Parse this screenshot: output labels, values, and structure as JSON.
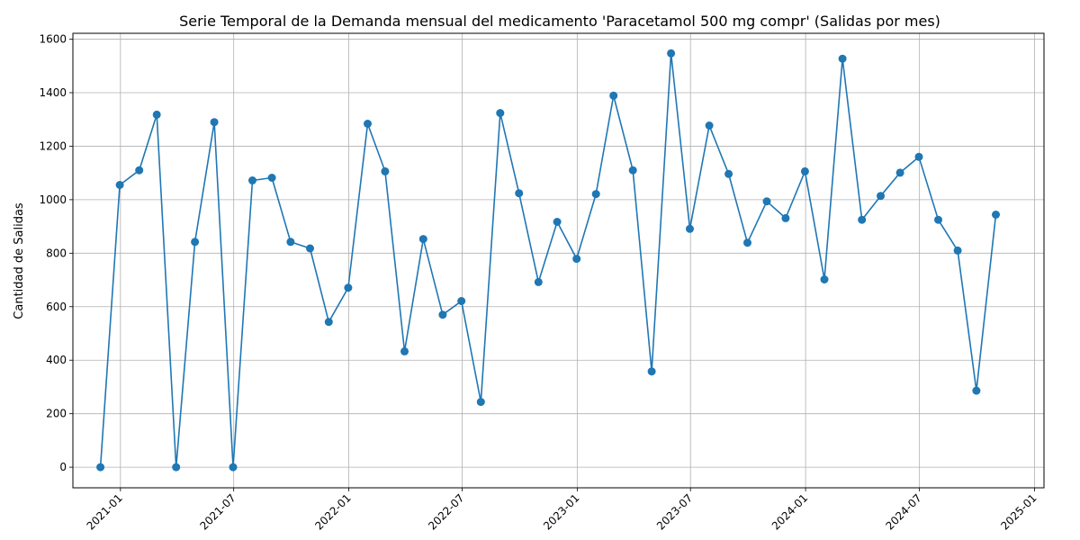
{
  "chart_data": {
    "type": "line",
    "title": "Serie Temporal de la Demanda mensual del medicamento 'Paracetamol 500 mg compr' (Salidas por mes)",
    "xlabel": "",
    "ylabel": "Cantidad de Salidas",
    "x_tick_labels": [
      "2021-01",
      "2021-07",
      "2022-01",
      "2022-07",
      "2023-01",
      "2023-07",
      "2024-01",
      "2024-07",
      "2025-01"
    ],
    "x_tick_dates": [
      "2021-01-01",
      "2021-07-01",
      "2022-01-01",
      "2022-07-01",
      "2023-01-01",
      "2023-07-01",
      "2024-01-01",
      "2024-07-01",
      "2025-01-01"
    ],
    "y_ticks": [
      0,
      200,
      400,
      600,
      800,
      1000,
      1200,
      1400,
      1600
    ],
    "xlim": [
      "2020-10-17",
      "2025-01-16"
    ],
    "ylim": [
      -77,
      1622
    ],
    "grid": true,
    "series": [
      {
        "color": "#1f77b4",
        "x": [
          "2020-11-30",
          "2020-12-31",
          "2021-01-31",
          "2021-02-28",
          "2021-03-31",
          "2021-04-30",
          "2021-05-31",
          "2021-06-30",
          "2021-07-31",
          "2021-08-31",
          "2021-09-30",
          "2021-10-31",
          "2021-11-30",
          "2021-12-31",
          "2022-01-31",
          "2022-02-28",
          "2022-03-31",
          "2022-04-30",
          "2022-05-31",
          "2022-06-30",
          "2022-07-31",
          "2022-08-31",
          "2022-09-30",
          "2022-10-31",
          "2022-11-30",
          "2022-12-31",
          "2023-01-31",
          "2023-02-28",
          "2023-03-31",
          "2023-04-30",
          "2023-05-31",
          "2023-06-30",
          "2023-07-31",
          "2023-08-31",
          "2023-09-30",
          "2023-10-31",
          "2023-11-30",
          "2023-12-31",
          "2024-01-31",
          "2024-02-29",
          "2024-03-31",
          "2024-04-30",
          "2024-05-31",
          "2024-06-30",
          "2024-07-31",
          "2024-08-31",
          "2024-09-30",
          "2024-10-31"
        ],
        "values": [
          0,
          1055,
          1110,
          1318,
          0,
          842,
          1290,
          0,
          1072,
          1082,
          842,
          818,
          543,
          671,
          1284,
          1106,
          433,
          853,
          570,
          621,
          244,
          1324,
          1024,
          692,
          917,
          779,
          1021,
          1389,
          1110,
          358,
          1547,
          891,
          1277,
          1096,
          839,
          994,
          931,
          1106,
          702,
          1527,
          925,
          1014,
          1101,
          1160,
          925,
          810,
          286,
          944
        ]
      }
    ]
  }
}
